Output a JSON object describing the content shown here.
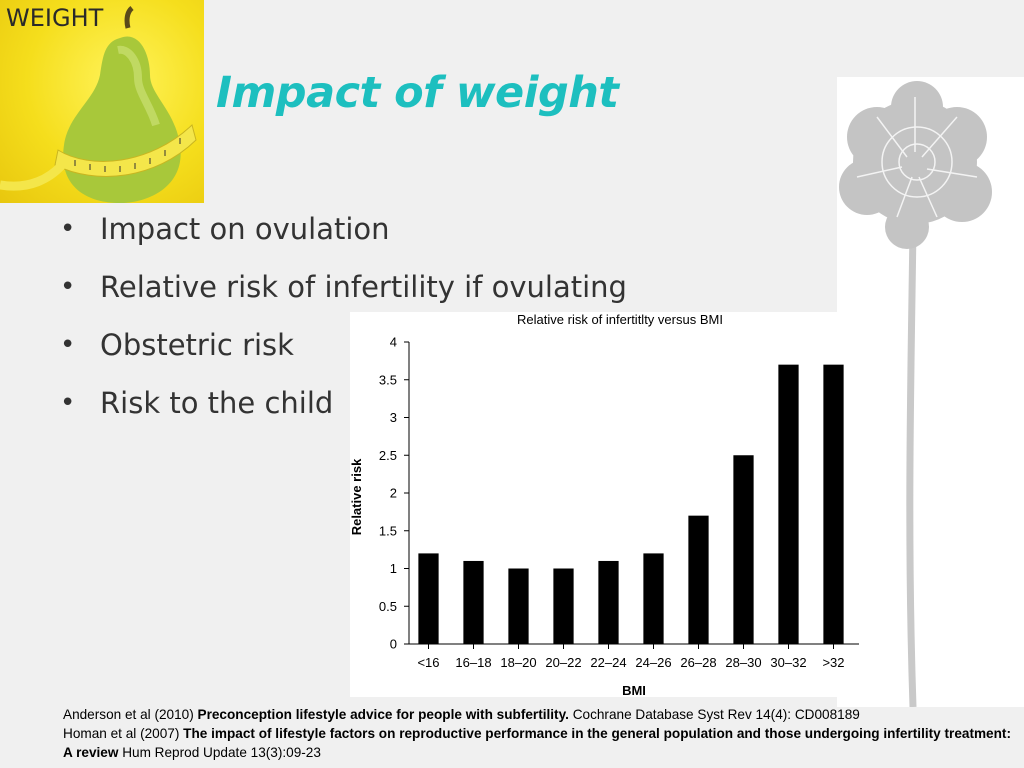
{
  "title": "Impact of weight",
  "image_label": "WEIGHT",
  "bullets": [
    "Impact on ovulation",
    "Relative risk of infertility if ovulating",
    "Obstetric risk",
    "Risk to the child"
  ],
  "chart_data": {
    "type": "bar",
    "title": "Relative risk of infertitlty versus BMI",
    "xlabel": "BMI",
    "ylabel": "Relative risk",
    "categories": [
      "<16",
      "16–18",
      "18–20",
      "20–22",
      "22–24",
      "24–26",
      "26–28",
      "28–30",
      "30–32",
      ">32"
    ],
    "values": [
      1.2,
      1.1,
      1.0,
      1.0,
      1.1,
      1.2,
      1.7,
      2.5,
      3.7,
      3.7
    ],
    "ylim": [
      0,
      4
    ],
    "yticks": [
      "0",
      "0.5",
      "1",
      "1.5",
      "2",
      "2.5",
      "3",
      "3.5",
      "4"
    ],
    "bar_color": "#000000",
    "grid": false
  },
  "references": [
    {
      "authors": "Anderson et al (2010)",
      "title": "Preconception lifestyle advice for people with subfertility.",
      "source": "Cochrane Database Syst Rev 14(4): CD008189"
    },
    {
      "authors": "Homan et al (2007)",
      "title": "The impact of lifestyle factors on reproductive performance in the general population and those undergoing infertility treatment: A review",
      "source": "Hum Reprod Update  13(3):09-23"
    }
  ],
  "colors": {
    "title": "#1dbfbf",
    "background": "#f0f0f0",
    "text": "#333333"
  }
}
